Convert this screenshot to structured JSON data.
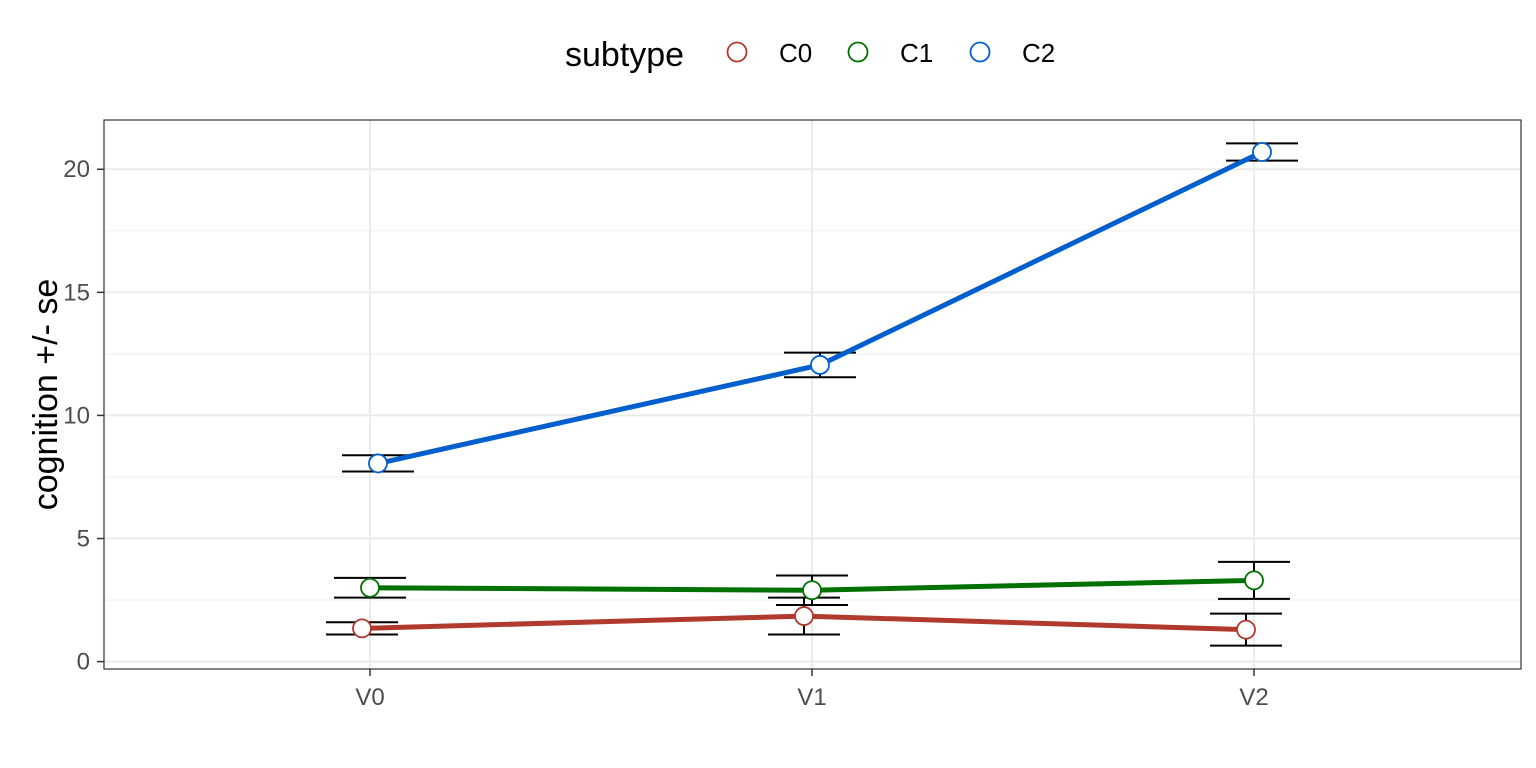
{
  "chart_data": {
    "type": "line",
    "title": "",
    "xlabel": "",
    "ylabel": "cognition  +/- se",
    "categories": [
      "V0",
      "V1",
      "V2"
    ],
    "ylim": [
      -0.3,
      22
    ],
    "yticks": [
      0,
      5,
      10,
      15,
      20
    ],
    "grid": true,
    "legend": {
      "title": "subtype",
      "position": "top"
    },
    "series": [
      {
        "name": "C0",
        "color": "#B03A2E",
        "values": [
          1.35,
          1.85,
          1.3
        ],
        "se": [
          0.25,
          0.75,
          0.65
        ]
      },
      {
        "name": "C1",
        "color": "#007000",
        "values": [
          3.0,
          2.9,
          3.3
        ],
        "se": [
          0.4,
          0.6,
          0.75
        ]
      },
      {
        "name": "C2",
        "color": "#005FCC",
        "values": [
          8.05,
          12.05,
          20.7
        ],
        "se": [
          0.33,
          0.5,
          0.35
        ]
      }
    ]
  }
}
